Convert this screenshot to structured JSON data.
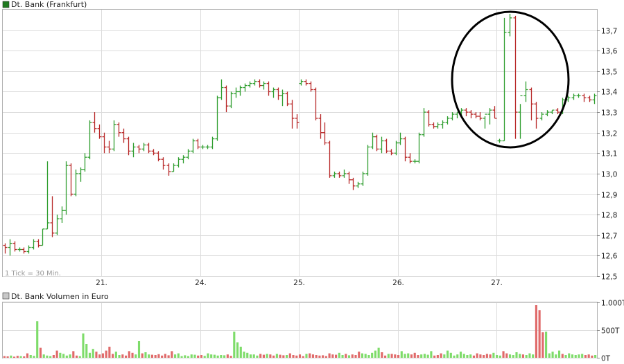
{
  "chart_data": [
    {
      "type": "bar",
      "subtype": "ohlc",
      "legend": "Dt. Bank (Frankfurt)",
      "legend_color": "#1f7a1f",
      "note": "1 Tick = 30 Min.",
      "ylim": [
        12.5,
        13.8
      ],
      "y_ticks": [
        "12,5",
        "12,6",
        "12,7",
        "12,8",
        "12,9",
        "13,0",
        "13,1",
        "13,2",
        "13,3",
        "13,4",
        "13,5",
        "13,6",
        "13,7"
      ],
      "x_day_labels": [
        "21.",
        "24.",
        "25.",
        "26.",
        "27."
      ],
      "up_color": "#2f9e2f",
      "down_color": "#b82828",
      "annotation": "circle around the 27. price spike",
      "days": [
        {
          "label": "",
          "bars": [
            [
              12.65,
              12.66,
              12.61,
              12.64
            ],
            [
              12.64,
              12.68,
              12.6,
              12.66
            ],
            [
              12.66,
              12.67,
              12.62,
              12.63
            ],
            [
              12.63,
              12.64,
              12.62,
              12.63
            ],
            [
              12.63,
              12.64,
              12.61,
              12.62
            ],
            [
              12.62,
              12.65,
              12.61,
              12.64
            ],
            [
              12.64,
              12.68,
              12.63,
              12.67
            ],
            [
              12.67,
              12.68,
              12.64,
              12.65
            ],
            [
              12.65,
              12.73,
              12.65,
              12.73
            ],
            [
              12.73,
              13.06,
              12.73,
              12.76
            ],
            [
              12.76,
              12.89,
              12.69,
              12.71
            ],
            [
              12.71,
              12.8,
              12.7,
              12.78
            ],
            [
              12.78,
              12.84,
              12.76,
              12.82
            ],
            [
              12.82,
              13.06,
              12.8,
              13.04
            ],
            [
              13.04,
              13.05,
              12.89,
              12.9
            ],
            [
              12.9,
              13.02,
              12.89,
              13.0
            ],
            [
              13.0,
              13.03,
              12.96,
              13.02
            ],
            [
              13.02,
              13.1,
              13.01,
              13.08
            ],
            [
              13.08,
              13.26,
              13.07,
              13.25
            ],
            [
              13.25,
              13.3,
              13.2,
              13.22
            ],
            [
              13.22,
              13.24,
              13.17,
              13.18
            ]
          ]
        },
        {
          "label": "21.",
          "bars": [
            [
              13.18,
              13.2,
              13.1,
              13.13
            ],
            [
              13.13,
              13.16,
              13.1,
              13.12
            ],
            [
              13.12,
              13.26,
              13.11,
              13.24
            ],
            [
              13.24,
              13.25,
              13.18,
              13.2
            ],
            [
              13.2,
              13.22,
              13.15,
              13.17
            ],
            [
              13.17,
              13.18,
              13.09,
              13.11
            ],
            [
              13.11,
              13.15,
              13.08,
              13.13
            ],
            [
              13.13,
              13.14,
              13.1,
              13.12
            ],
            [
              13.12,
              13.15,
              13.11,
              13.14
            ],
            [
              13.14,
              13.15,
              13.1,
              13.11
            ],
            [
              13.11,
              13.12,
              13.09,
              13.1
            ],
            [
              13.1,
              13.11,
              13.06,
              13.07
            ],
            [
              13.07,
              13.08,
              13.02,
              13.04
            ],
            [
              13.04,
              13.05,
              12.99,
              13.01
            ],
            [
              13.01,
              13.05,
              13.01,
              13.04
            ],
            [
              13.04,
              13.08,
              13.03,
              13.07
            ],
            [
              13.07,
              13.09,
              13.05,
              13.08
            ],
            [
              13.08,
              13.12,
              13.07,
              13.11
            ],
            [
              13.11,
              13.17,
              13.1,
              13.16
            ],
            [
              13.16,
              13.17,
              13.12,
              13.13
            ]
          ]
        },
        {
          "label": "24.",
          "bars": [
            [
              13.13,
              13.14,
              13.12,
              13.13
            ],
            [
              13.13,
              13.14,
              13.12,
              13.13
            ],
            [
              13.13,
              13.18,
              13.12,
              13.17
            ],
            [
              13.17,
              13.38,
              13.16,
              13.37
            ],
            [
              13.37,
              13.46,
              13.36,
              13.42
            ],
            [
              13.42,
              13.43,
              13.3,
              13.33
            ],
            [
              13.33,
              13.4,
              13.32,
              13.39
            ],
            [
              13.39,
              13.42,
              13.37,
              13.4
            ],
            [
              13.4,
              13.43,
              13.38,
              13.42
            ],
            [
              13.42,
              13.44,
              13.4,
              13.43
            ],
            [
              13.43,
              13.45,
              13.42,
              13.44
            ],
            [
              13.44,
              13.46,
              13.43,
              13.45
            ],
            [
              13.45,
              13.46,
              13.42,
              13.43
            ],
            [
              13.43,
              13.45,
              13.41,
              13.44
            ],
            [
              13.44,
              13.45,
              13.38,
              13.4
            ],
            [
              13.4,
              13.42,
              13.37,
              13.41
            ],
            [
              13.41,
              13.42,
              13.36,
              13.38
            ],
            [
              13.38,
              13.41,
              13.33,
              13.39
            ],
            [
              13.39,
              13.4,
              13.33,
              13.34
            ],
            [
              13.34,
              13.36,
              13.22,
              13.27
            ],
            [
              13.27,
              13.29,
              13.22,
              13.25
            ]
          ]
        },
        {
          "label": "25.",
          "bars": [
            [
              13.44,
              13.46,
              13.43,
              13.45
            ],
            [
              13.45,
              13.46,
              13.43,
              13.44
            ],
            [
              13.44,
              13.45,
              13.4,
              13.41
            ],
            [
              13.41,
              13.42,
              13.26,
              13.27
            ],
            [
              13.27,
              13.29,
              13.17,
              13.2
            ],
            [
              13.2,
              13.25,
              13.14,
              13.15
            ],
            [
              13.15,
              13.16,
              12.98,
              12.99
            ],
            [
              12.99,
              13.01,
              12.98,
              13.0
            ],
            [
              13.0,
              13.01,
              12.98,
              12.99
            ],
            [
              12.99,
              13.02,
              12.98,
              13.0
            ],
            [
              13.0,
              13.01,
              12.95,
              12.97
            ],
            [
              12.97,
              12.98,
              12.92,
              12.94
            ],
            [
              12.94,
              12.96,
              12.93,
              12.95
            ],
            [
              12.95,
              13.01,
              12.94,
              13.0
            ],
            [
              13.0,
              13.14,
              12.99,
              13.13
            ],
            [
              13.13,
              13.2,
              13.12,
              13.18
            ],
            [
              13.18,
              13.19,
              13.11,
              13.12
            ],
            [
              13.12,
              13.18,
              13.1,
              13.16
            ],
            [
              13.16,
              13.17,
              13.1,
              13.11
            ],
            [
              13.11,
              13.12,
              13.09,
              13.1
            ],
            [
              13.1,
              13.16,
              13.09,
              13.15
            ]
          ]
        },
        {
          "label": "26.",
          "bars": [
            [
              13.15,
              13.2,
              13.14,
              13.17
            ],
            [
              13.17,
              13.18,
              13.06,
              13.08
            ],
            [
              13.08,
              13.1,
              13.05,
              13.06
            ],
            [
              13.06,
              13.07,
              13.05,
              13.06
            ],
            [
              13.06,
              13.2,
              13.05,
              13.19
            ],
            [
              13.19,
              13.32,
              13.18,
              13.3
            ],
            [
              13.3,
              13.31,
              13.23,
              13.24
            ],
            [
              13.24,
              13.25,
              13.22,
              13.23
            ],
            [
              13.23,
              13.25,
              13.22,
              13.24
            ],
            [
              13.24,
              13.26,
              13.22,
              13.25
            ],
            [
              13.25,
              13.28,
              13.24,
              13.27
            ],
            [
              13.27,
              13.3,
              13.26,
              13.29
            ],
            [
              13.29,
              13.3,
              13.27,
              13.3
            ],
            [
              13.3,
              13.32,
              13.28,
              13.31
            ],
            [
              13.31,
              13.32,
              13.28,
              13.3
            ],
            [
              13.3,
              13.31,
              13.27,
              13.29
            ],
            [
              13.29,
              13.3,
              13.27,
              13.28
            ],
            [
              13.28,
              13.3,
              13.26,
              13.27
            ],
            [
              13.27,
              13.28,
              13.22,
              13.29
            ],
            [
              13.29,
              13.32,
              13.24,
              13.31
            ],
            [
              13.31,
              13.33,
              13.27,
              13.27
            ]
          ]
        },
        {
          "label": "27.",
          "bars": [
            [
              13.16,
              13.17,
              13.15,
              13.16
            ],
            [
              13.16,
              13.76,
              13.16,
              13.69
            ],
            [
              13.69,
              13.78,
              13.67,
              13.76
            ],
            [
              13.76,
              13.77,
              13.17,
              13.3
            ],
            [
              13.3,
              13.34,
              13.17,
              13.38
            ],
            [
              13.38,
              13.45,
              13.35,
              13.41
            ],
            [
              13.41,
              13.42,
              13.26,
              13.34
            ],
            [
              13.34,
              13.35,
              13.22,
              13.27
            ],
            [
              13.27,
              13.3,
              13.26,
              13.29
            ],
            [
              13.29,
              13.31,
              13.28,
              13.3
            ],
            [
              13.3,
              13.31,
              13.29,
              13.31
            ],
            [
              13.31,
              13.32,
              13.29,
              13.3
            ],
            [
              13.3,
              13.37,
              13.29,
              13.36
            ],
            [
              13.36,
              13.38,
              13.35,
              13.37
            ],
            [
              13.37,
              13.39,
              13.36,
              13.38
            ],
            [
              13.38,
              13.39,
              13.37,
              13.38
            ],
            [
              13.38,
              13.39,
              13.35,
              13.37
            ],
            [
              13.37,
              13.38,
              13.35,
              13.36
            ],
            [
              13.36,
              13.39,
              13.34,
              13.38
            ]
          ]
        }
      ]
    },
    {
      "type": "bar",
      "legend": "Dt. Bank Volumen in Euro",
      "legend_color": "#c8c8c8",
      "ylim": [
        0,
        1000
      ],
      "y_tick_labels": [
        "0T",
        "500T",
        "1.000T"
      ],
      "y_tick_values": [
        0,
        500,
        1000
      ],
      "volumes": [
        30,
        25,
        40,
        20,
        35,
        30,
        25,
        80,
        50,
        35,
        660,
        180,
        60,
        40,
        30,
        50,
        130,
        90,
        70,
        40,
        60,
        120,
        40,
        30,
        440,
        250,
        90,
        160,
        110,
        60,
        80,
        130,
        200,
        70,
        110,
        50,
        60,
        40,
        120,
        90,
        60,
        300,
        80,
        100,
        60,
        55,
        50,
        65,
        40,
        70,
        45,
        120,
        60,
        80,
        30,
        45,
        30,
        60,
        55,
        40,
        50,
        35,
        80,
        60,
        55,
        40,
        50,
        45,
        60,
        35,
        470,
        280,
        200,
        110,
        90,
        60,
        60,
        40,
        70,
        55,
        70,
        60,
        40,
        70,
        55,
        45,
        50,
        80,
        50,
        40,
        60,
        30,
        70,
        80,
        60,
        50,
        40,
        45,
        30,
        80,
        60,
        55,
        90,
        50,
        70,
        45,
        60,
        50,
        110,
        80,
        70,
        50,
        90,
        130,
        180,
        100,
        40,
        70,
        70,
        60,
        50,
        120,
        70,
        80,
        60,
        90,
        50,
        60,
        70,
        55,
        120,
        40,
        50,
        80,
        60,
        130,
        90,
        40,
        60,
        110,
        70,
        50,
        60,
        40,
        80,
        60,
        50,
        70,
        60,
        90,
        50,
        40,
        120,
        80,
        60,
        50,
        100,
        70,
        60,
        50,
        80,
        60,
        950,
        860,
        460,
        470,
        80,
        110,
        60,
        130,
        70,
        50,
        80,
        60,
        50,
        60,
        70,
        50,
        60,
        40,
        50
      ]
    }
  ]
}
